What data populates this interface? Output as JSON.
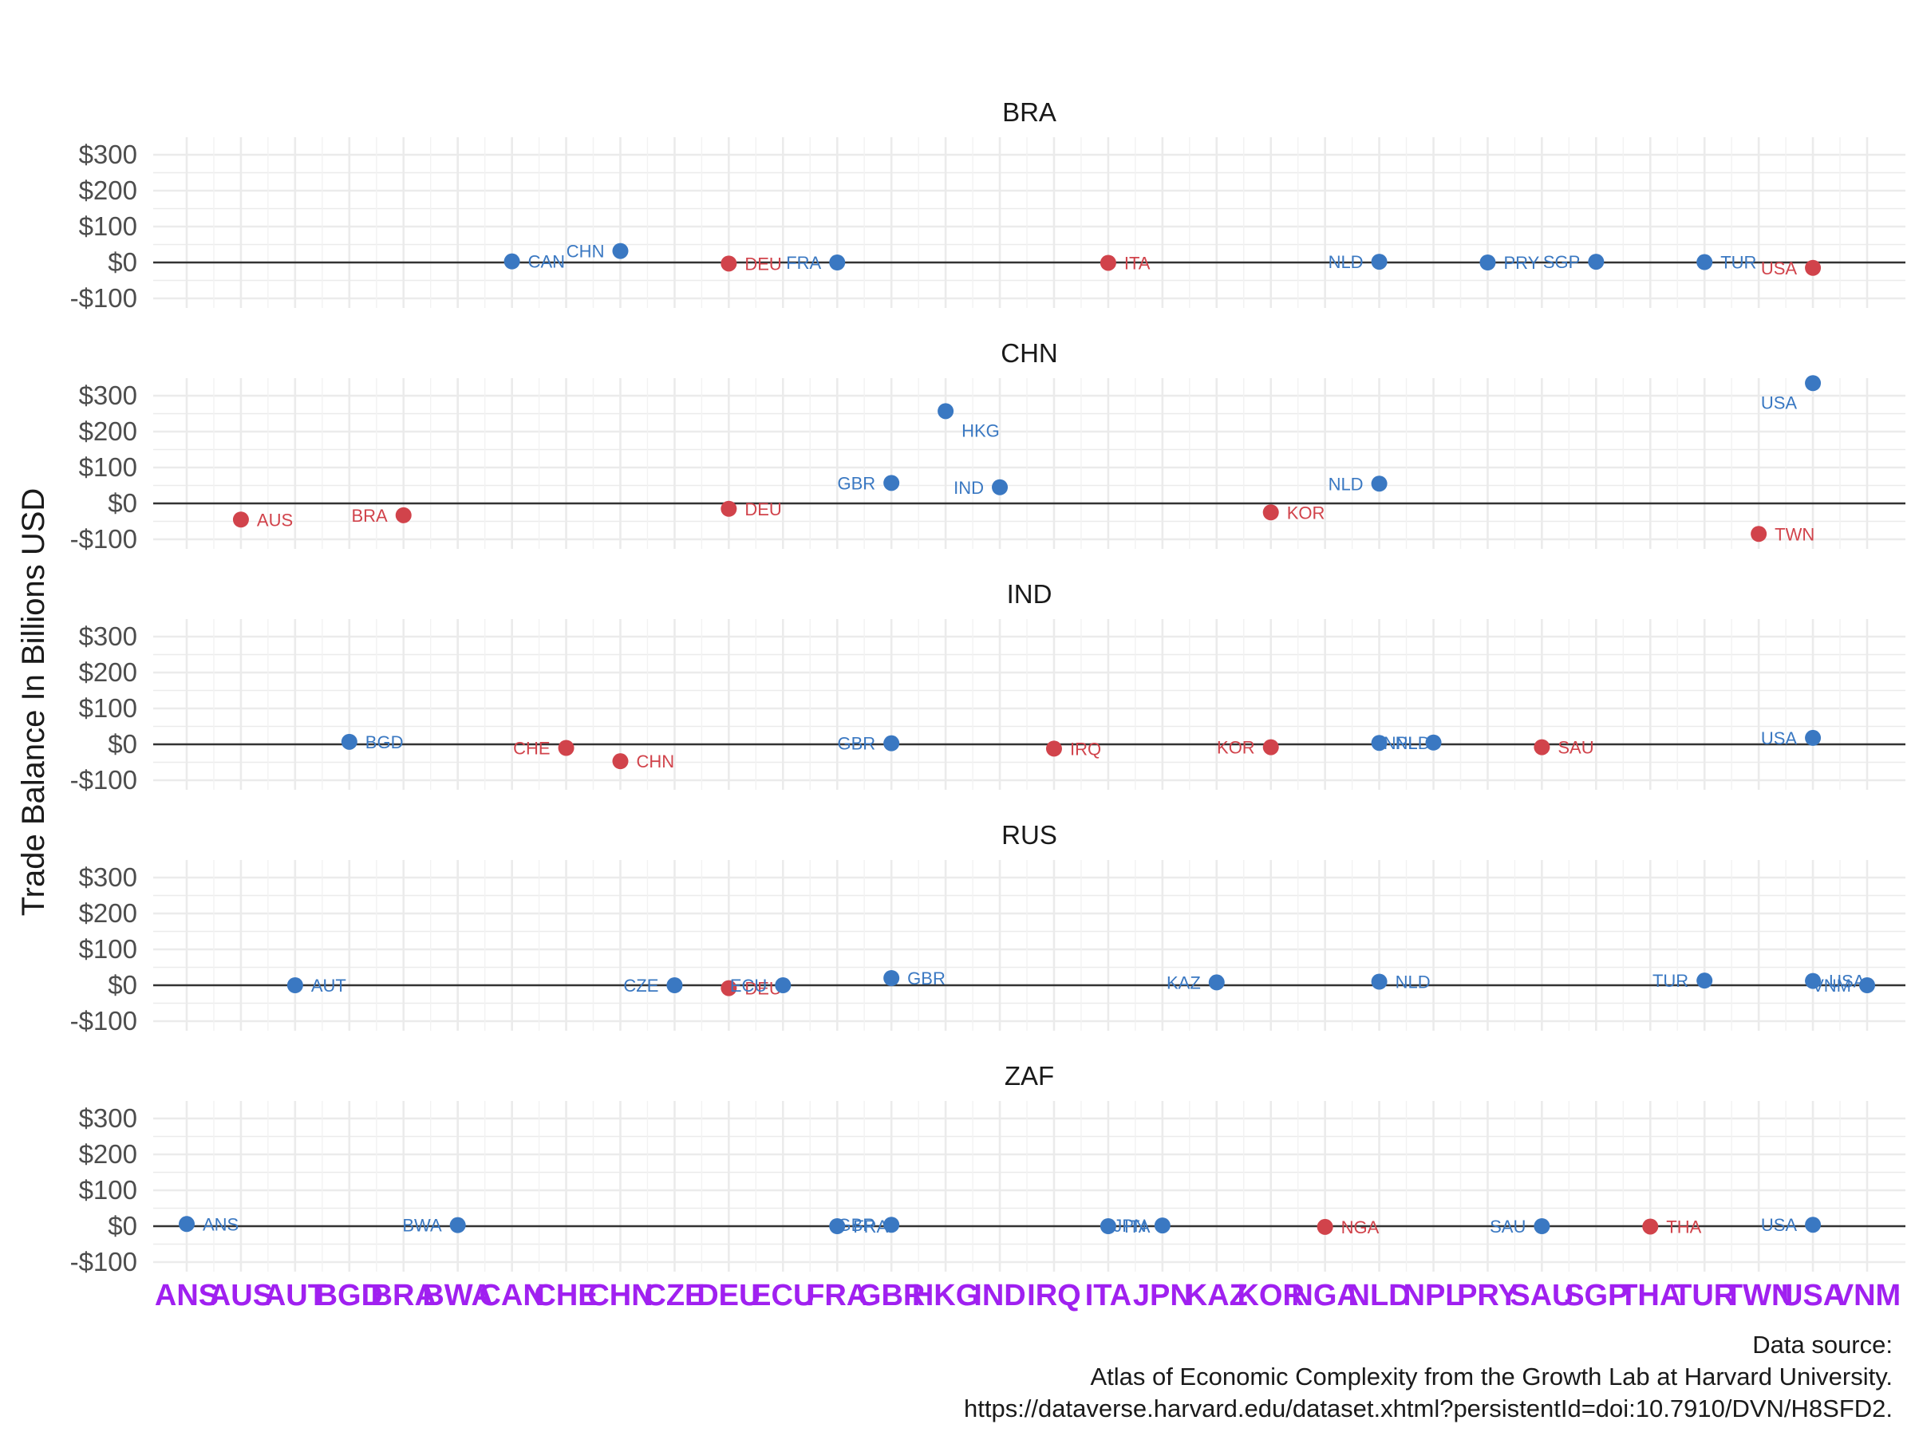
{
  "chart_data": {
    "type": "scatter",
    "ylabel": "Trade Balance In Billions USD",
    "ylim": [
      -100,
      300
    ],
    "y_ticks": [
      -100,
      0,
      100,
      200,
      300
    ],
    "y_tick_labels": [
      "-$100",
      "$0",
      "$100",
      "$200",
      "$300"
    ],
    "x_categories": [
      "ANS",
      "AUS",
      "AUT",
      "BGD",
      "BRA",
      "BWA",
      "CAN",
      "CHE",
      "CHN",
      "CZE",
      "DEU",
      "ECU",
      "FRA",
      "GBR",
      "HKG",
      "IND",
      "IRQ",
      "ITA",
      "JPN",
      "KAZ",
      "KOR",
      "NGA",
      "NLD",
      "NPL",
      "PRY",
      "SAU",
      "SGP",
      "THA",
      "TUR",
      "TWN",
      "USA",
      "VNM"
    ],
    "colors": {
      "positive": "#3a78c2",
      "negative": "#d1434b"
    },
    "caption": [
      "Data source:",
      "Atlas of Economic Complexity from the Growth Lab at Harvard University.",
      "https://dataverse.harvard.edu/dataset.xhtml?persistentId=doi:10.7910/DVN/H8SFD2."
    ],
    "facets": [
      {
        "title": "BRA",
        "points": [
          {
            "x": "CAN",
            "y": 3
          },
          {
            "x": "CHN",
            "y": 32
          },
          {
            "x": "DEU",
            "y": -3
          },
          {
            "x": "FRA",
            "y": 0
          },
          {
            "x": "ITA",
            "y": -1
          },
          {
            "x": "NLD",
            "y": 2
          },
          {
            "x": "PRY",
            "y": 0
          },
          {
            "x": "SGP",
            "y": 2
          },
          {
            "x": "TUR",
            "y": 1
          },
          {
            "x": "USA",
            "y": -15
          }
        ]
      },
      {
        "title": "CHN",
        "points": [
          {
            "x": "AUS",
            "y": -45
          },
          {
            "x": "BRA",
            "y": -33
          },
          {
            "x": "DEU",
            "y": -15
          },
          {
            "x": "GBR",
            "y": 57
          },
          {
            "x": "HKG",
            "y": 257
          },
          {
            "x": "IND",
            "y": 45
          },
          {
            "x": "KOR",
            "y": -25
          },
          {
            "x": "NLD",
            "y": 55
          },
          {
            "x": "TWN",
            "y": -85
          },
          {
            "x": "USA",
            "y": 335
          }
        ]
      },
      {
        "title": "IND",
        "points": [
          {
            "x": "BGD",
            "y": 7
          },
          {
            "x": "CHE",
            "y": -10
          },
          {
            "x": "CHN",
            "y": -47
          },
          {
            "x": "GBR",
            "y": 3
          },
          {
            "x": "IRQ",
            "y": -12
          },
          {
            "x": "KOR",
            "y": -8
          },
          {
            "x": "NLD",
            "y": 4
          },
          {
            "x": "NPL",
            "y": 5
          },
          {
            "x": "SAU",
            "y": -8
          },
          {
            "x": "USA",
            "y": 18
          }
        ]
      },
      {
        "title": "RUS",
        "points": [
          {
            "x": "AUT",
            "y": 0
          },
          {
            "x": "CZE",
            "y": 0
          },
          {
            "x": "DEU",
            "y": -8
          },
          {
            "x": "ECU",
            "y": 0
          },
          {
            "x": "GBR",
            "y": 20
          },
          {
            "x": "KAZ",
            "y": 8
          },
          {
            "x": "NLD",
            "y": 10
          },
          {
            "x": "TUR",
            "y": 13
          },
          {
            "x": "USA",
            "y": 12
          },
          {
            "x": "VNM",
            "y": 0
          }
        ]
      },
      {
        "title": "ZAF",
        "points": [
          {
            "x": "ANS",
            "y": 6
          },
          {
            "x": "BWA",
            "y": 3
          },
          {
            "x": "FRA",
            "y": 0
          },
          {
            "x": "GBR",
            "y": 4
          },
          {
            "x": "ITA",
            "y": 0
          },
          {
            "x": "JPN",
            "y": 2
          },
          {
            "x": "NGA",
            "y": -2
          },
          {
            "x": "SAU",
            "y": 0
          },
          {
            "x": "THA",
            "y": -1
          },
          {
            "x": "USA",
            "y": 4
          }
        ]
      }
    ]
  }
}
